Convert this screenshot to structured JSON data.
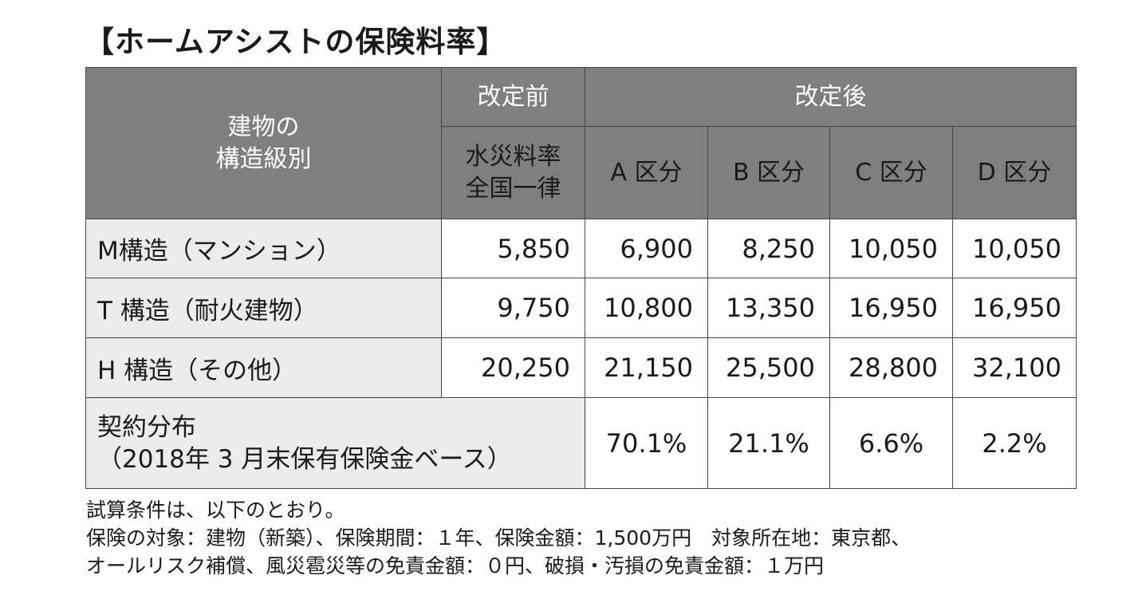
{
  "title": "【ホームアシストの保険料率】",
  "table": {
    "header": {
      "structure_col": [
        "建物の",
        "構造級別"
      ],
      "before_group": "改定前",
      "after_group": "改定後",
      "before_sub": [
        "水災料率",
        "全国一律"
      ],
      "after_sub": [
        "A 区分",
        "B 区分",
        "C 区分",
        "D 区分"
      ]
    },
    "rows": [
      {
        "label": "M構造（マンション）",
        "values": [
          "5,850",
          "6,900",
          "8,250",
          "10,050",
          "10,050"
        ]
      },
      {
        "label": "T 構造（耐火建物）",
        "values": [
          "9,750",
          "10,800",
          "13,350",
          "16,950",
          "16,950"
        ]
      },
      {
        "label": "H 構造（その他）",
        "values": [
          "20,250",
          "21,150",
          "25,500",
          "28,800",
          "32,100"
        ]
      }
    ],
    "contract": {
      "label": [
        "契約分布",
        "（2018年 3 月末保有保険金ベース）"
      ],
      "values": [
        "70.1%",
        "21.1%",
        "6.6%",
        "2.2%"
      ]
    }
  },
  "notes": [
    "試算条件は、以下のとおり。",
    "保険の対象：建物（新築）、保険期間：１年、保険金額：1,500万円　対象所在地：東京都、",
    "オールリスク補償、風災雹災等の免責金額：０円、破損・汚損の免責金額：１万円"
  ],
  "colors": {
    "header_bg": "#7f7f7f",
    "label_bg": "#ececec",
    "border": "#444444"
  }
}
